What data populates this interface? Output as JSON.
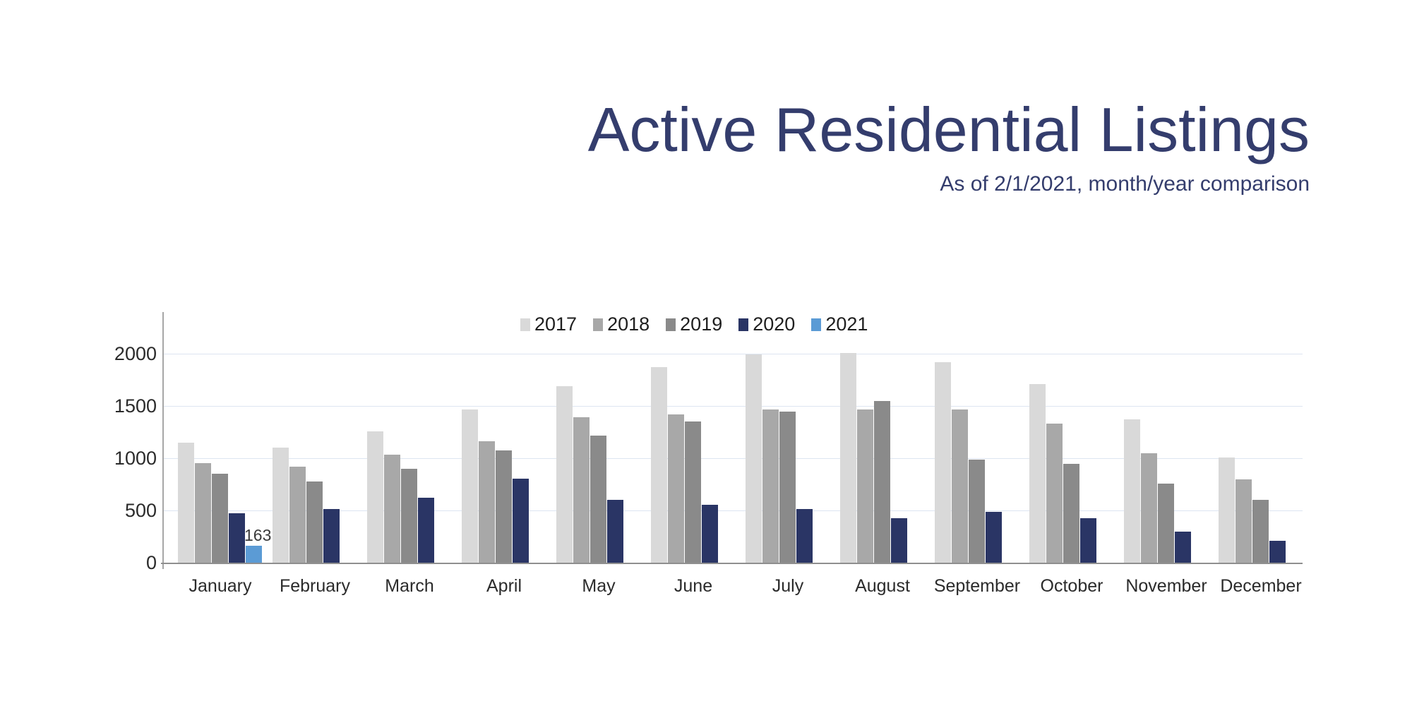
{
  "slide": {
    "title": "Active Residential Listings",
    "subtitle": "As of 2/1/2021, month/year comparison",
    "title_color": "#343d6d"
  },
  "chart_data": {
    "type": "bar",
    "title": "Active Residential Listings",
    "subtitle": "As of 2/1/2021, month/year comparison",
    "categories": [
      "January",
      "February",
      "March",
      "April",
      "May",
      "June",
      "July",
      "August",
      "September",
      "October",
      "November",
      "December"
    ],
    "series": [
      {
        "name": "2017",
        "color": "#d9d9d9",
        "values": [
          1150,
          1100,
          1255,
          1470,
          1690,
          1870,
          1995,
          2010,
          1920,
          1710,
          1375,
          1010
        ]
      },
      {
        "name": "2018",
        "color": "#a8a8a8",
        "values": [
          950,
          920,
          1035,
          1165,
          1395,
          1420,
          1465,
          1465,
          1465,
          1330,
          1050,
          800
        ]
      },
      {
        "name": "2019",
        "color": "#8a8a8a",
        "values": [
          855,
          780,
          900,
          1075,
          1215,
          1350,
          1445,
          1550,
          990,
          945,
          760,
          600
        ]
      },
      {
        "name": "2020",
        "color": "#2a3565",
        "values": [
          470,
          515,
          625,
          805,
          600,
          555,
          515,
          425,
          490,
          425,
          300,
          210
        ]
      },
      {
        "name": "2021",
        "color": "#5b9bd5",
        "values": [
          163,
          null,
          null,
          null,
          null,
          null,
          null,
          null,
          null,
          null,
          null,
          null
        ]
      }
    ],
    "data_labels": [
      {
        "series": "2021",
        "category": "January",
        "text": "163"
      }
    ],
    "yticks": [
      0,
      500,
      1000,
      1500,
      2000
    ],
    "ylim": [
      0,
      2400
    ],
    "grid": true,
    "legend_position": "top-center",
    "colors": {
      "gridline": "#dde5f1",
      "axis_line": "#a6a6a6",
      "baseline": "#8f8f8f",
      "tick_text": "#2b2b2b",
      "category_text": "#2b2b2b",
      "data_label_text": "#3a3a3a"
    }
  }
}
